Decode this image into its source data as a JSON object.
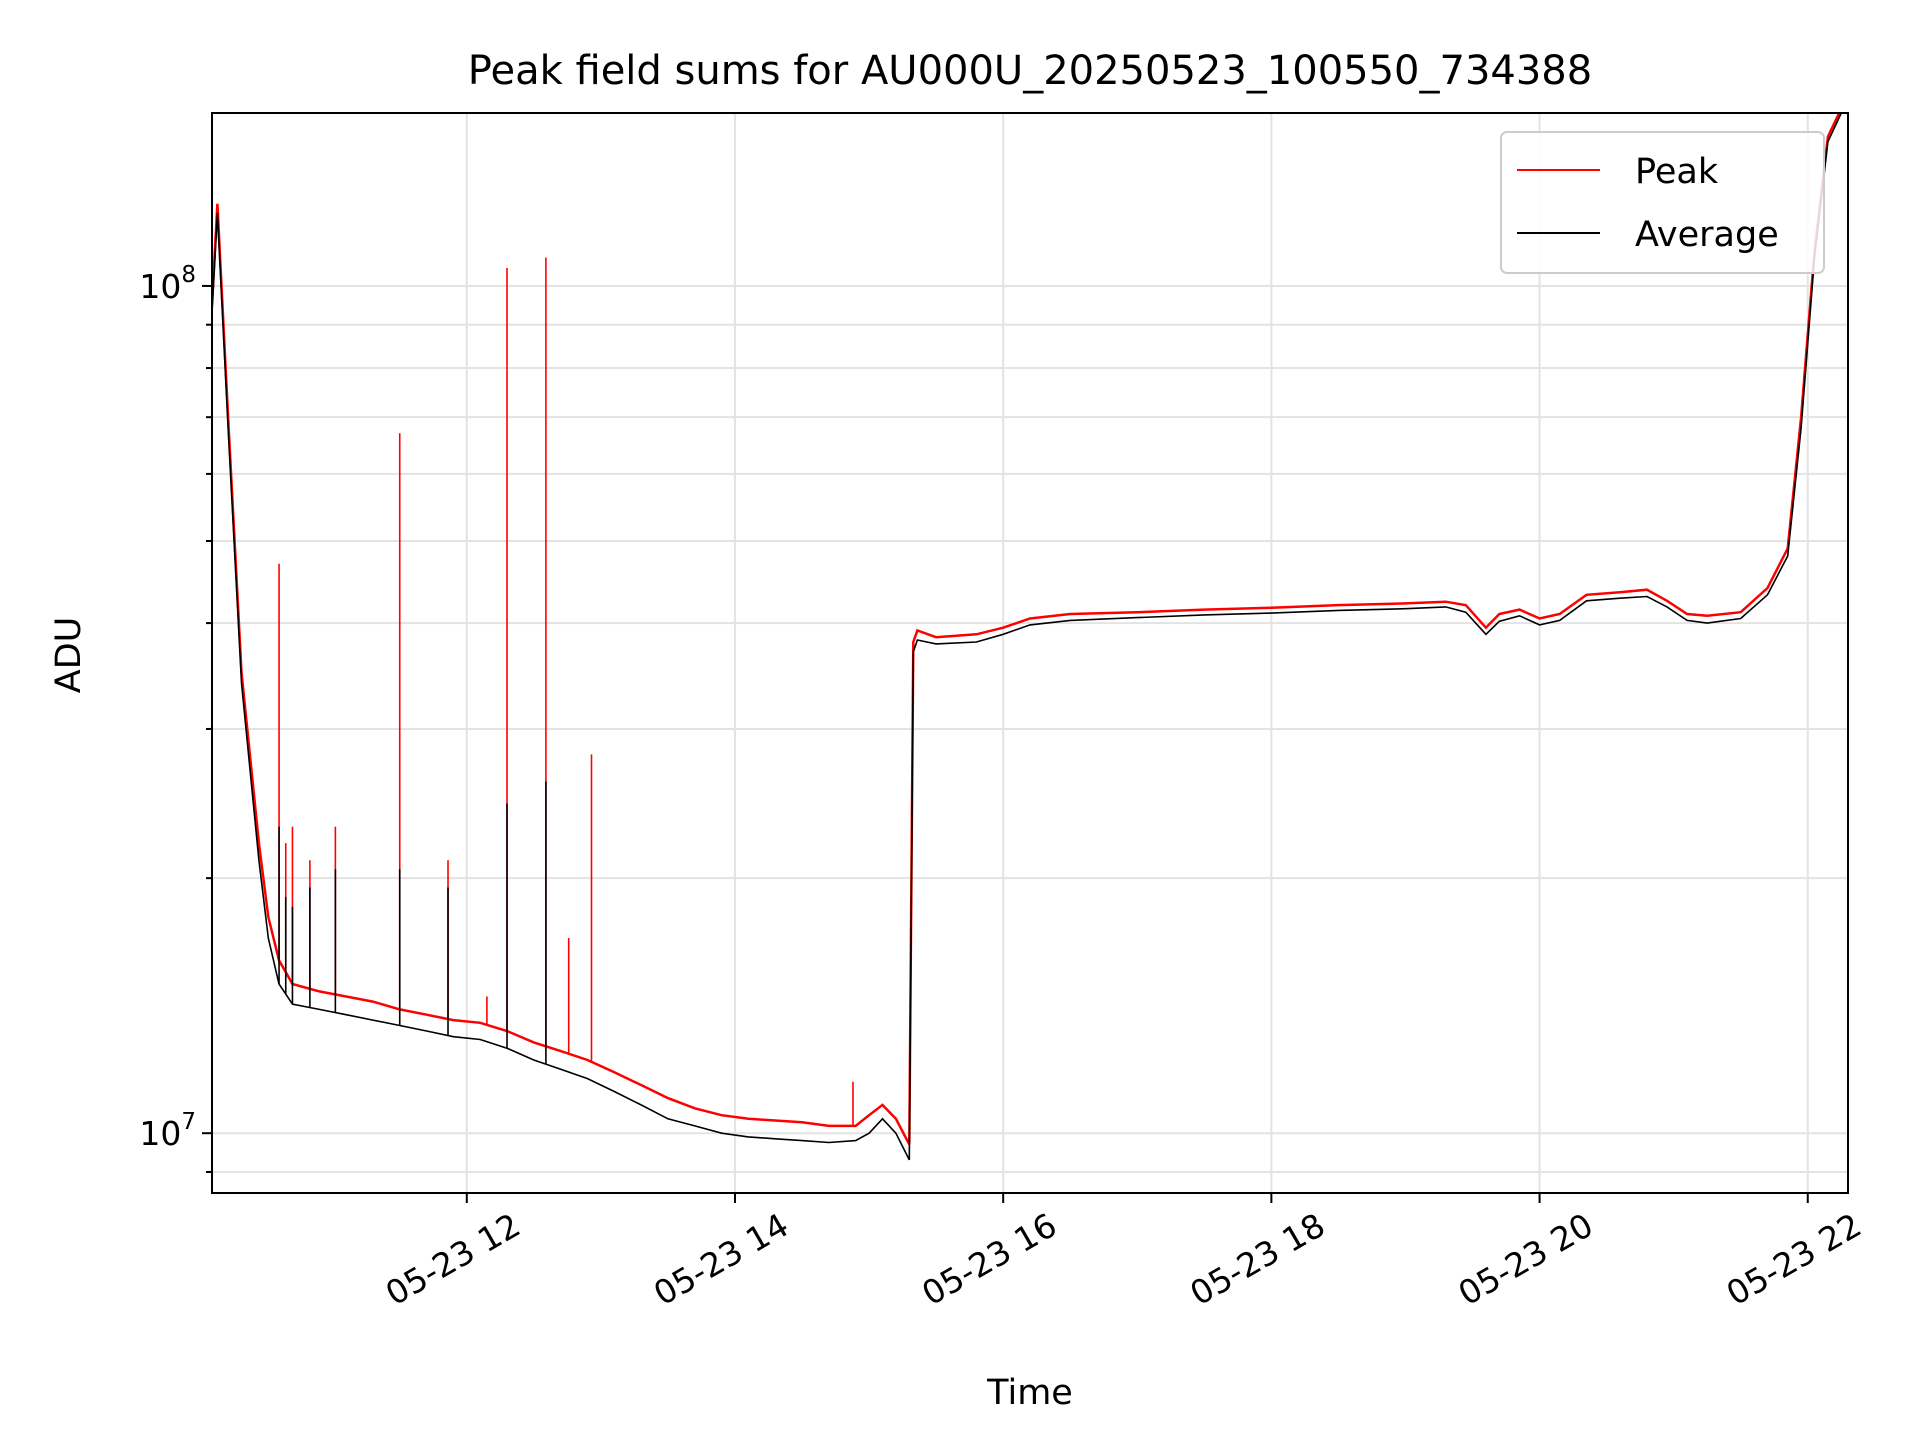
{
  "chart_data": {
    "type": "line",
    "title": "Peak field sums for AU000U_20250523_100550_734388",
    "xlabel": "Time",
    "ylabel": "ADU",
    "x_unit": "hours (time of day, 2025-05-23)",
    "xlim": [
      10.1,
      22.3
    ],
    "ylim": [
      8500000.0,
      160000000.0
    ],
    "yscale": "log",
    "grid": true,
    "legend_position": "top-right",
    "x_ticks": [
      {
        "value": 12,
        "label": "05-23 12"
      },
      {
        "value": 14,
        "label": "05-23 14"
      },
      {
        "value": 16,
        "label": "05-23 16"
      },
      {
        "value": 18,
        "label": "05-23 18"
      },
      {
        "value": 20,
        "label": "05-23 20"
      },
      {
        "value": 22,
        "label": "05-23 22"
      }
    ],
    "y_ticks": [
      {
        "value": 10000000.0,
        "base": "10",
        "exp": "7"
      },
      {
        "value": 100000000.0,
        "base": "10",
        "exp": "8"
      }
    ],
    "series": [
      {
        "name": "Peak",
        "color": "#ff0000",
        "x": [
          10.1,
          10.14,
          10.22,
          10.32,
          10.45,
          10.52,
          10.6,
          10.7,
          10.9,
          11.1,
          11.3,
          11.5,
          11.7,
          11.9,
          12.1,
          12.3,
          12.5,
          12.7,
          12.9,
          13.1,
          13.3,
          13.5,
          13.7,
          13.9,
          14.1,
          14.3,
          14.5,
          14.7,
          14.9,
          15.0,
          15.1,
          15.2,
          15.3,
          15.33,
          15.36,
          15.5,
          15.8,
          16.0,
          16.2,
          16.5,
          17.0,
          17.5,
          18.0,
          18.5,
          19.0,
          19.3,
          19.45,
          19.6,
          19.7,
          19.85,
          20.0,
          20.15,
          20.35,
          20.6,
          20.8,
          20.95,
          21.1,
          21.25,
          21.5,
          21.7,
          21.85,
          21.95,
          22.05,
          22.15,
          22.25,
          22.3
        ],
        "y": [
          95000000.0,
          125000000.0,
          70000000.0,
          35000000.0,
          22000000.0,
          18000000.0,
          16000000.0,
          15000000.0,
          14700000.0,
          14500000.0,
          14300000.0,
          14000000.0,
          13800000.0,
          13600000.0,
          13500000.0,
          13200000.0,
          12800000.0,
          12500000.0,
          12200000.0,
          11800000.0,
          11400000.0,
          11000000.0,
          10700000.0,
          10500000.0,
          10400000.0,
          10350000.0,
          10300000.0,
          10200000.0,
          10200000.0,
          10500000.0,
          10800000.0,
          10400000.0,
          9700000.0,
          38000000.0,
          39200000.0,
          38500000.0,
          38800000.0,
          39500000.0,
          40500000.0,
          41000000.0,
          41200000.0,
          41500000.0,
          41700000.0,
          42000000.0,
          42200000.0,
          42400000.0,
          42000000.0,
          39500000.0,
          41000000.0,
          41500000.0,
          40500000.0,
          41000000.0,
          43200000.0,
          43500000.0,
          43800000.0,
          42500000.0,
          41000000.0,
          40800000.0,
          41200000.0,
          44000000.0,
          49000000.0,
          70000000.0,
          110000000.0,
          150000000.0,
          162000000.0,
          165000000.0
        ],
        "spikes": [
          {
            "x": 10.6,
            "y": 47000000.0
          },
          {
            "x": 10.65,
            "y": 22000000.0
          },
          {
            "x": 10.7,
            "y": 23000000.0
          },
          {
            "x": 10.83,
            "y": 21000000.0
          },
          {
            "x": 11.02,
            "y": 23000000.0
          },
          {
            "x": 11.5,
            "y": 67000000.0
          },
          {
            "x": 11.86,
            "y": 21000000.0
          },
          {
            "x": 12.15,
            "y": 14500000.0
          },
          {
            "x": 12.3,
            "y": 105000000.0
          },
          {
            "x": 12.59,
            "y": 108000000.0
          },
          {
            "x": 12.76,
            "y": 17000000.0
          },
          {
            "x": 12.93,
            "y": 28000000.0
          },
          {
            "x": 14.88,
            "y": 11500000.0
          }
        ]
      },
      {
        "name": "Average",
        "color": "#000000",
        "x": [
          10.1,
          10.14,
          10.22,
          10.32,
          10.45,
          10.52,
          10.6,
          10.7,
          10.9,
          11.1,
          11.3,
          11.5,
          11.7,
          11.9,
          12.1,
          12.3,
          12.5,
          12.7,
          12.9,
          13.1,
          13.3,
          13.5,
          13.7,
          13.9,
          14.1,
          14.3,
          14.5,
          14.7,
          14.9,
          15.0,
          15.1,
          15.2,
          15.3,
          15.33,
          15.36,
          15.5,
          15.8,
          16.0,
          16.2,
          16.5,
          17.0,
          17.5,
          18.0,
          18.5,
          19.0,
          19.3,
          19.45,
          19.6,
          19.7,
          19.85,
          20.0,
          20.15,
          20.35,
          20.6,
          20.8,
          20.95,
          21.1,
          21.25,
          21.5,
          21.7,
          21.85,
          21.95,
          22.05,
          22.15,
          22.25,
          22.3
        ],
        "y": [
          93000000.0,
          122000000.0,
          68000000.0,
          34000000.0,
          21000000.0,
          17000000.0,
          15000000.0,
          14200000.0,
          14000000.0,
          13800000.0,
          13600000.0,
          13400000.0,
          13200000.0,
          13000000.0,
          12900000.0,
          12600000.0,
          12200000.0,
          11900000.0,
          11600000.0,
          11200000.0,
          10800000.0,
          10400000.0,
          10200000.0,
          10000000.0,
          9900000.0,
          9850000.0,
          9800000.0,
          9750000.0,
          9800000.0,
          10000000.0,
          10400000.0,
          10000000.0,
          9300000.0,
          37000000.0,
          38200000.0,
          37800000.0,
          38000000.0,
          38800000.0,
          39800000.0,
          40300000.0,
          40600000.0,
          40900000.0,
          41100000.0,
          41400000.0,
          41600000.0,
          41800000.0,
          41200000.0,
          38800000.0,
          40200000.0,
          40800000.0,
          39800000.0,
          40300000.0,
          42500000.0,
          42800000.0,
          43000000.0,
          41800000.0,
          40300000.0,
          40000000.0,
          40500000.0,
          43200000.0,
          48000000.0,
          68000000.0,
          108000000.0,
          148000000.0,
          160000000.0,
          163000000.0
        ],
        "spikes": [
          {
            "x": 10.6,
            "y": 23000000.0
          },
          {
            "x": 10.65,
            "y": 19000000.0
          },
          {
            "x": 10.7,
            "y": 18500000.0
          },
          {
            "x": 10.83,
            "y": 19500000.0
          },
          {
            "x": 11.02,
            "y": 20500000.0
          },
          {
            "x": 11.5,
            "y": 20500000.0
          },
          {
            "x": 11.86,
            "y": 19500000.0
          },
          {
            "x": 12.3,
            "y": 24500000.0
          },
          {
            "x": 12.59,
            "y": 26000000.0
          }
        ]
      }
    ]
  }
}
